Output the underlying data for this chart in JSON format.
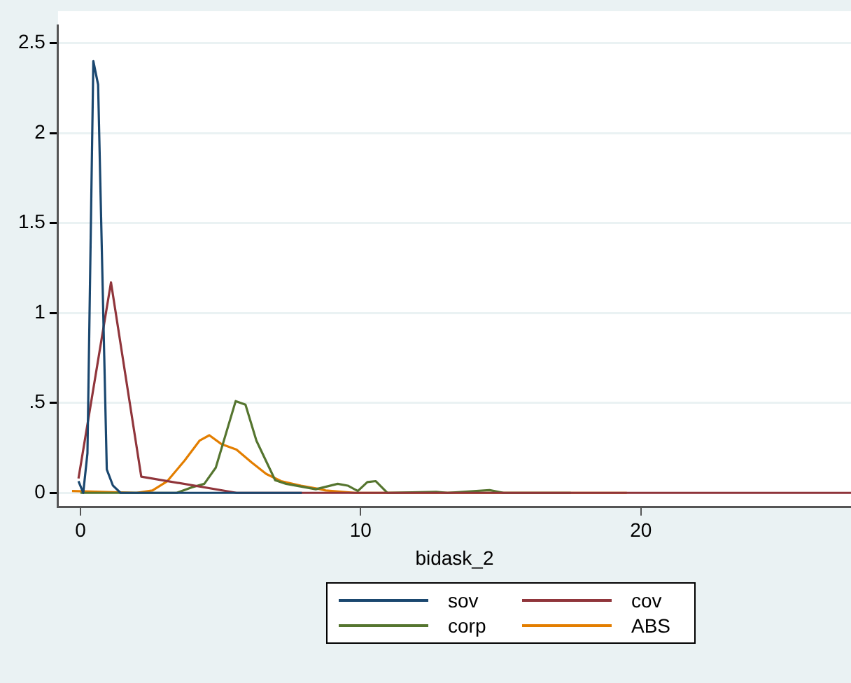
{
  "chart_data": {
    "type": "line",
    "xlabel": "bidask_2",
    "xlim": [
      -0.8,
      27.5
    ],
    "xticks": [
      0,
      10,
      20
    ],
    "ylim": [
      -0.08,
      2.6
    ],
    "yticks": [
      {
        "value": 0,
        "label": "0"
      },
      {
        "value": 0.5,
        "label": ".5"
      },
      {
        "value": 1,
        "label": "1"
      },
      {
        "value": 1.5,
        "label": "1.5"
      },
      {
        "value": 2,
        "label": "2"
      },
      {
        "value": 2.5,
        "label": "2.5"
      }
    ],
    "grid": "y",
    "legend": "bottom",
    "marker": "none",
    "line_style": "solid",
    "series": [
      {
        "name": "sov",
        "color": "#1a476f",
        "x": [
          -0.07,
          0.1,
          0.25,
          0.46,
          0.63,
          0.94,
          1.16,
          1.43,
          3,
          5,
          7.9
        ],
        "values": [
          0.065,
          0,
          0.22,
          2.4,
          2.27,
          0.13,
          0.04,
          0,
          0,
          0,
          0
        ]
      },
      {
        "name": "cov",
        "color": "#90353b",
        "x": [
          -0.07,
          1.09,
          2.17,
          5.57,
          27.5
        ],
        "values": [
          0.08,
          1.17,
          0.09,
          0,
          0
        ]
      },
      {
        "name": "corp",
        "color": "#55752f",
        "x": [
          0,
          3.44,
          3.97,
          4.42,
          4.83,
          5.54,
          5.89,
          6.28,
          6.95,
          7.34,
          8.4,
          9.18,
          9.54,
          9.9,
          10.24,
          10.54,
          10.95,
          12.7,
          13.1,
          14.6,
          15.1,
          17.5
        ],
        "values": [
          0,
          0,
          0.03,
          0.05,
          0.14,
          0.51,
          0.49,
          0.29,
          0.07,
          0.05,
          0.02,
          0.05,
          0.04,
          0.01,
          0.06,
          0.065,
          0,
          0.005,
          0,
          0.015,
          0,
          0
        ]
      },
      {
        "name": "ABS",
        "color": "#e37e00",
        "x": [
          -0.3,
          2,
          2.57,
          3.1,
          3.72,
          4.25,
          4.6,
          5.04,
          5.57,
          6.1,
          6.63,
          7.16,
          7.87,
          8.57,
          8.75,
          9.8,
          19.5
        ],
        "values": [
          0.01,
          0,
          0.013,
          0.065,
          0.18,
          0.29,
          0.32,
          0.27,
          0.24,
          0.17,
          0.105,
          0.065,
          0.04,
          0.02,
          0.013,
          0,
          0
        ]
      }
    ]
  }
}
